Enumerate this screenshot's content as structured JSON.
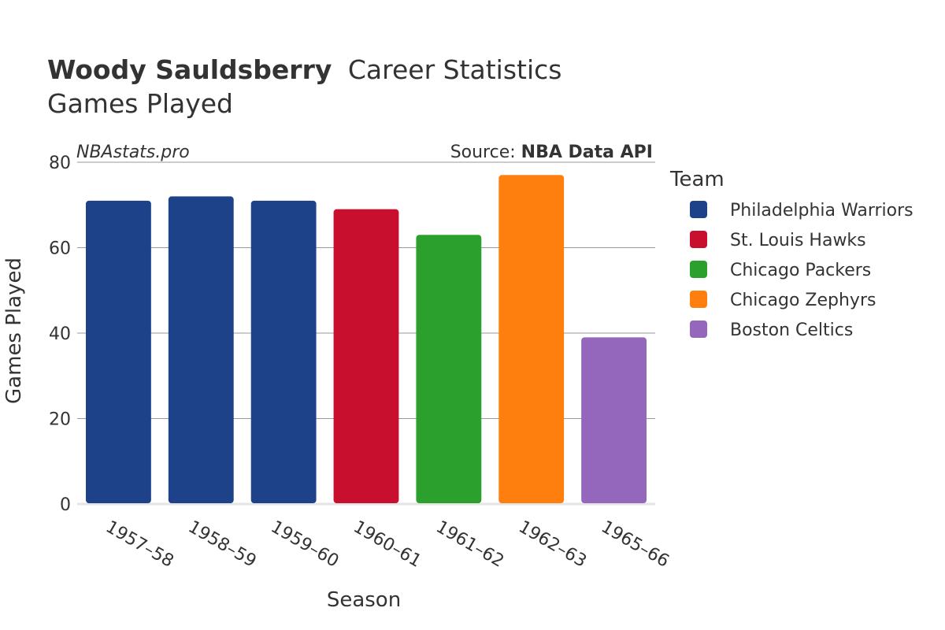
{
  "chart_data": {
    "type": "bar",
    "title_bold": "Woody Sauldsberry",
    "title_rest": "Career Statistics",
    "subtitle": "Games Played",
    "watermark": "NBAstats.pro",
    "source_prefix": "Source: ",
    "source_name": "NBA Data API",
    "xlabel": "Season",
    "ylabel": "Games Played",
    "ylim": [
      0,
      80
    ],
    "yticks": [
      0,
      20,
      40,
      60,
      80
    ],
    "categories": [
      "1957–58",
      "1958–59",
      "1959–60",
      "1960–61",
      "1961–62",
      "1962–63",
      "1965–66"
    ],
    "values": [
      71,
      72,
      71,
      69,
      63,
      77,
      39
    ],
    "teams": [
      "Philadelphia Warriors",
      "Philadelphia Warriors",
      "Philadelphia Warriors",
      "St. Louis Hawks",
      "Chicago Packers",
      "Chicago Zephyrs",
      "Boston Celtics"
    ],
    "legend_title": "Team",
    "legend": [
      {
        "name": "Philadelphia Warriors",
        "color": "#1d4289"
      },
      {
        "name": "St. Louis Hawks",
        "color": "#c8102e"
      },
      {
        "name": "Chicago Packers",
        "color": "#2ca02c"
      },
      {
        "name": "Chicago Zephyrs",
        "color": "#ff7f0e"
      },
      {
        "name": "Boston Celtics",
        "color": "#9467bd"
      }
    ]
  }
}
